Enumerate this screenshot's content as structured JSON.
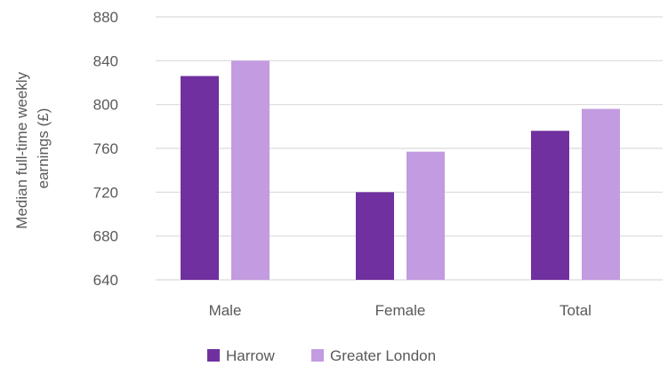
{
  "chart_data": {
    "type": "bar",
    "categories": [
      "Male",
      "Female",
      "Total"
    ],
    "series": [
      {
        "name": "Harrow",
        "values": [
          826,
          720,
          776
        ],
        "color": "#7030a0"
      },
      {
        "name": "Greater London",
        "values": [
          840,
          757,
          796
        ],
        "color": "#c39be0"
      }
    ],
    "ylabel_lines": [
      "Median full-time weekly",
      "earnings (£)"
    ],
    "ylim": [
      640,
      880
    ],
    "yticks": [
      640,
      680,
      720,
      760,
      800,
      840,
      880
    ],
    "grid": true,
    "legend_position": "bottom"
  }
}
